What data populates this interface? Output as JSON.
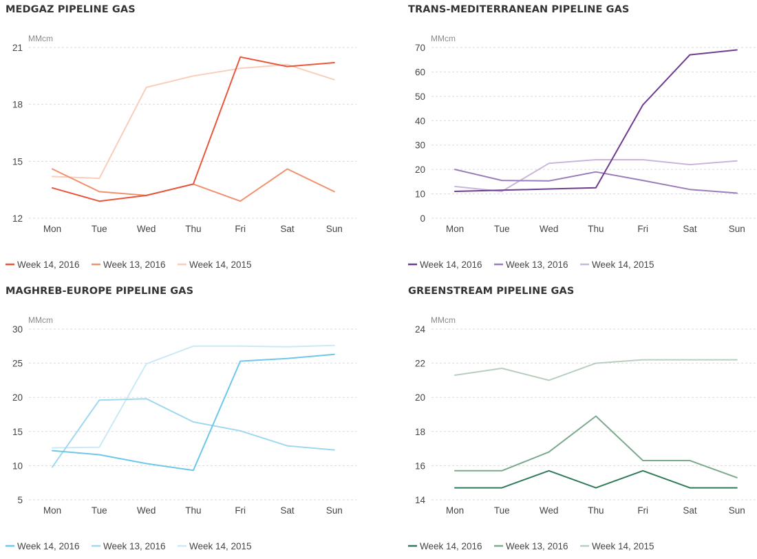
{
  "chart_data": [
    {
      "type": "line",
      "title": "MEDGAZ PIPELINE GAS",
      "ylabel": "MMcm",
      "ylim": [
        12,
        21
      ],
      "yticks": [
        12,
        15,
        18,
        21
      ],
      "grid": true,
      "legend": "bottom",
      "categories": [
        "Mon",
        "Tue",
        "Wed",
        "Thu",
        "Fri",
        "Sat",
        "Sun"
      ],
      "series": [
        {
          "name": "Week 14, 2016",
          "color": "#e8553a",
          "values": [
            13.6,
            12.9,
            13.2,
            13.8,
            20.5,
            20.0,
            20.2
          ]
        },
        {
          "name": "Week 13, 2016",
          "color": "#f1906f",
          "values": [
            14.6,
            13.4,
            13.2,
            13.8,
            12.9,
            14.6,
            13.4
          ]
        },
        {
          "name": "Week 14, 2015",
          "color": "#f9cdb9",
          "values": [
            14.2,
            14.1,
            18.9,
            19.5,
            19.9,
            20.1,
            19.3
          ]
        }
      ]
    },
    {
      "type": "line",
      "title": "TRANS-MEDITERRANEAN PIPELINE GAS",
      "ylabel": "MMcm",
      "ylim": [
        0,
        70
      ],
      "yticks": [
        0,
        10,
        20,
        30,
        40,
        50,
        60,
        70
      ],
      "grid": true,
      "legend": "bottom",
      "categories": [
        "Mon",
        "Tue",
        "Wed",
        "Thu",
        "Fri",
        "Sat",
        "Sun"
      ],
      "series": [
        {
          "name": "Week 14, 2016",
          "color": "#6c3b8e",
          "values": [
            11,
            11.5,
            12,
            12.5,
            46.5,
            67,
            69
          ]
        },
        {
          "name": "Week 13, 2016",
          "color": "#9b7cbb",
          "values": [
            20,
            15.5,
            15.3,
            19,
            15.5,
            11.8,
            10.3
          ]
        },
        {
          "name": "Week 14, 2015",
          "color": "#c9b6dc",
          "values": [
            13,
            11,
            22.5,
            24,
            24,
            22,
            23.5
          ]
        }
      ]
    },
    {
      "type": "line",
      "title": "MAGHREB-EUROPE PIPELINE GAS",
      "ylabel": "MMcm",
      "ylim": [
        5,
        30
      ],
      "yticks": [
        5,
        10,
        15,
        20,
        25,
        30
      ],
      "grid": true,
      "legend": "bottom",
      "categories": [
        "Mon",
        "Tue",
        "Wed",
        "Thu",
        "Fri",
        "Sat",
        "Sun"
      ],
      "series": [
        {
          "name": "Week 14, 2016",
          "color": "#6cc7ea",
          "values": [
            12.2,
            11.6,
            10.3,
            9.3,
            25.3,
            25.7,
            26.3
          ]
        },
        {
          "name": "Week 13, 2016",
          "color": "#9ed8f0",
          "values": [
            9.8,
            19.6,
            19.8,
            16.4,
            15.1,
            12.9,
            12.3
          ]
        },
        {
          "name": "Week 14, 2015",
          "color": "#c9e9f7",
          "values": [
            12.6,
            12.7,
            24.9,
            27.5,
            27.5,
            27.4,
            27.6
          ]
        }
      ]
    },
    {
      "type": "line",
      "title": "GREENSTREAM PIPELINE GAS",
      "ylabel": "MMcm",
      "ylim": [
        14,
        24
      ],
      "yticks": [
        14,
        16,
        18,
        20,
        22,
        24
      ],
      "grid": true,
      "legend": "bottom",
      "categories": [
        "Mon",
        "Tue",
        "Wed",
        "Thu",
        "Fri",
        "Sat",
        "Sun"
      ],
      "series": [
        {
          "name": "Week 14, 2016",
          "color": "#2f7a58",
          "values": [
            14.7,
            14.7,
            15.7,
            14.7,
            15.7,
            14.7,
            14.7
          ]
        },
        {
          "name": "Week 13, 2016",
          "color": "#7aa98c",
          "values": [
            15.7,
            15.7,
            16.8,
            18.9,
            16.3,
            16.3,
            15.3
          ]
        },
        {
          "name": "Week 14, 2015",
          "color": "#b7cfbf",
          "values": [
            21.3,
            21.7,
            21.0,
            22.0,
            22.2,
            22.2,
            22.2
          ]
        }
      ]
    }
  ]
}
